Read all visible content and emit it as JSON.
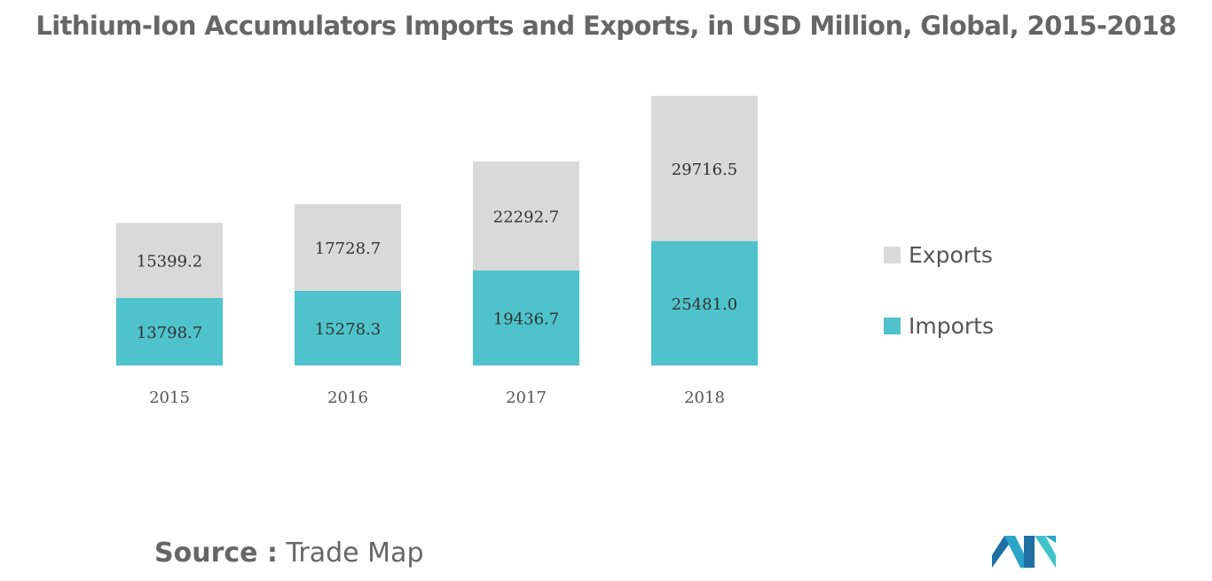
{
  "title": "Lithium-Ion Accumulators Imports and Exports, in USD Million, Global, 2015-2018",
  "source": {
    "label": "Source :",
    "value": "Trade Map"
  },
  "colors": {
    "imports": "#4fc3cb",
    "exports": "#d9d9d9"
  },
  "chart_data": {
    "type": "bar",
    "stacked": true,
    "categories": [
      "2015",
      "2016",
      "2017",
      "2018"
    ],
    "series": [
      {
        "name": "Imports",
        "values": [
          13798.7,
          15278.3,
          19436.7,
          25481.0
        ]
      },
      {
        "name": "Exports",
        "values": [
          15399.2,
          17728.7,
          22292.7,
          29716.5
        ]
      }
    ],
    "data_labels": {
      "Imports": [
        "13798.7",
        "15278.3",
        "19436.7",
        "25481.0"
      ],
      "Exports": [
        "15399.2",
        "17728.7",
        "22292.7",
        "29716.5"
      ]
    },
    "title": "Lithium-Ion Accumulators Imports and Exports, in USD Million, Global, 2015-2018",
    "xlabel": "",
    "ylabel": "",
    "grid": false,
    "legend_position": "right",
    "legend_order": [
      "Exports",
      "Imports"
    ]
  }
}
